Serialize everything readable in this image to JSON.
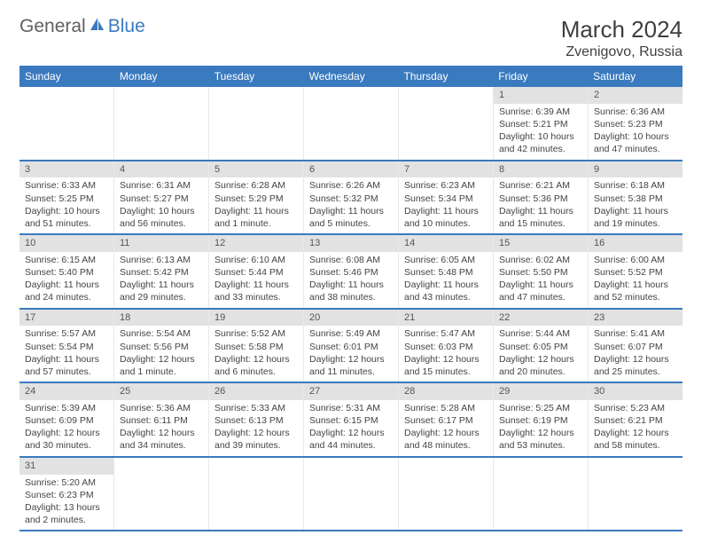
{
  "logo": {
    "general": "General",
    "blue": "Blue"
  },
  "title": "March 2024",
  "location": "Zvenigovo, Russia",
  "colors": {
    "header_bg": "#3a7abf",
    "daynum_bg": "#e2e2e2",
    "row_border": "#3a7abf",
    "text": "#444444",
    "title_text": "#3f3f3f"
  },
  "day_headers": [
    "Sunday",
    "Monday",
    "Tuesday",
    "Wednesday",
    "Thursday",
    "Friday",
    "Saturday"
  ],
  "weeks": [
    [
      null,
      null,
      null,
      null,
      null,
      {
        "n": "1",
        "sr": "Sunrise: 6:39 AM",
        "ss": "Sunset: 5:21 PM",
        "d1": "Daylight: 10 hours",
        "d2": "and 42 minutes."
      },
      {
        "n": "2",
        "sr": "Sunrise: 6:36 AM",
        "ss": "Sunset: 5:23 PM",
        "d1": "Daylight: 10 hours",
        "d2": "and 47 minutes."
      }
    ],
    [
      {
        "n": "3",
        "sr": "Sunrise: 6:33 AM",
        "ss": "Sunset: 5:25 PM",
        "d1": "Daylight: 10 hours",
        "d2": "and 51 minutes."
      },
      {
        "n": "4",
        "sr": "Sunrise: 6:31 AM",
        "ss": "Sunset: 5:27 PM",
        "d1": "Daylight: 10 hours",
        "d2": "and 56 minutes."
      },
      {
        "n": "5",
        "sr": "Sunrise: 6:28 AM",
        "ss": "Sunset: 5:29 PM",
        "d1": "Daylight: 11 hours",
        "d2": "and 1 minute."
      },
      {
        "n": "6",
        "sr": "Sunrise: 6:26 AM",
        "ss": "Sunset: 5:32 PM",
        "d1": "Daylight: 11 hours",
        "d2": "and 5 minutes."
      },
      {
        "n": "7",
        "sr": "Sunrise: 6:23 AM",
        "ss": "Sunset: 5:34 PM",
        "d1": "Daylight: 11 hours",
        "d2": "and 10 minutes."
      },
      {
        "n": "8",
        "sr": "Sunrise: 6:21 AM",
        "ss": "Sunset: 5:36 PM",
        "d1": "Daylight: 11 hours",
        "d2": "and 15 minutes."
      },
      {
        "n": "9",
        "sr": "Sunrise: 6:18 AM",
        "ss": "Sunset: 5:38 PM",
        "d1": "Daylight: 11 hours",
        "d2": "and 19 minutes."
      }
    ],
    [
      {
        "n": "10",
        "sr": "Sunrise: 6:15 AM",
        "ss": "Sunset: 5:40 PM",
        "d1": "Daylight: 11 hours",
        "d2": "and 24 minutes."
      },
      {
        "n": "11",
        "sr": "Sunrise: 6:13 AM",
        "ss": "Sunset: 5:42 PM",
        "d1": "Daylight: 11 hours",
        "d2": "and 29 minutes."
      },
      {
        "n": "12",
        "sr": "Sunrise: 6:10 AM",
        "ss": "Sunset: 5:44 PM",
        "d1": "Daylight: 11 hours",
        "d2": "and 33 minutes."
      },
      {
        "n": "13",
        "sr": "Sunrise: 6:08 AM",
        "ss": "Sunset: 5:46 PM",
        "d1": "Daylight: 11 hours",
        "d2": "and 38 minutes."
      },
      {
        "n": "14",
        "sr": "Sunrise: 6:05 AM",
        "ss": "Sunset: 5:48 PM",
        "d1": "Daylight: 11 hours",
        "d2": "and 43 minutes."
      },
      {
        "n": "15",
        "sr": "Sunrise: 6:02 AM",
        "ss": "Sunset: 5:50 PM",
        "d1": "Daylight: 11 hours",
        "d2": "and 47 minutes."
      },
      {
        "n": "16",
        "sr": "Sunrise: 6:00 AM",
        "ss": "Sunset: 5:52 PM",
        "d1": "Daylight: 11 hours",
        "d2": "and 52 minutes."
      }
    ],
    [
      {
        "n": "17",
        "sr": "Sunrise: 5:57 AM",
        "ss": "Sunset: 5:54 PM",
        "d1": "Daylight: 11 hours",
        "d2": "and 57 minutes."
      },
      {
        "n": "18",
        "sr": "Sunrise: 5:54 AM",
        "ss": "Sunset: 5:56 PM",
        "d1": "Daylight: 12 hours",
        "d2": "and 1 minute."
      },
      {
        "n": "19",
        "sr": "Sunrise: 5:52 AM",
        "ss": "Sunset: 5:58 PM",
        "d1": "Daylight: 12 hours",
        "d2": "and 6 minutes."
      },
      {
        "n": "20",
        "sr": "Sunrise: 5:49 AM",
        "ss": "Sunset: 6:01 PM",
        "d1": "Daylight: 12 hours",
        "d2": "and 11 minutes."
      },
      {
        "n": "21",
        "sr": "Sunrise: 5:47 AM",
        "ss": "Sunset: 6:03 PM",
        "d1": "Daylight: 12 hours",
        "d2": "and 15 minutes."
      },
      {
        "n": "22",
        "sr": "Sunrise: 5:44 AM",
        "ss": "Sunset: 6:05 PM",
        "d1": "Daylight: 12 hours",
        "d2": "and 20 minutes."
      },
      {
        "n": "23",
        "sr": "Sunrise: 5:41 AM",
        "ss": "Sunset: 6:07 PM",
        "d1": "Daylight: 12 hours",
        "d2": "and 25 minutes."
      }
    ],
    [
      {
        "n": "24",
        "sr": "Sunrise: 5:39 AM",
        "ss": "Sunset: 6:09 PM",
        "d1": "Daylight: 12 hours",
        "d2": "and 30 minutes."
      },
      {
        "n": "25",
        "sr": "Sunrise: 5:36 AM",
        "ss": "Sunset: 6:11 PM",
        "d1": "Daylight: 12 hours",
        "d2": "and 34 minutes."
      },
      {
        "n": "26",
        "sr": "Sunrise: 5:33 AM",
        "ss": "Sunset: 6:13 PM",
        "d1": "Daylight: 12 hours",
        "d2": "and 39 minutes."
      },
      {
        "n": "27",
        "sr": "Sunrise: 5:31 AM",
        "ss": "Sunset: 6:15 PM",
        "d1": "Daylight: 12 hours",
        "d2": "and 44 minutes."
      },
      {
        "n": "28",
        "sr": "Sunrise: 5:28 AM",
        "ss": "Sunset: 6:17 PM",
        "d1": "Daylight: 12 hours",
        "d2": "and 48 minutes."
      },
      {
        "n": "29",
        "sr": "Sunrise: 5:25 AM",
        "ss": "Sunset: 6:19 PM",
        "d1": "Daylight: 12 hours",
        "d2": "and 53 minutes."
      },
      {
        "n": "30",
        "sr": "Sunrise: 5:23 AM",
        "ss": "Sunset: 6:21 PM",
        "d1": "Daylight: 12 hours",
        "d2": "and 58 minutes."
      }
    ],
    [
      {
        "n": "31",
        "sr": "Sunrise: 5:20 AM",
        "ss": "Sunset: 6:23 PM",
        "d1": "Daylight: 13 hours",
        "d2": "and 2 minutes."
      },
      null,
      null,
      null,
      null,
      null,
      null
    ]
  ]
}
